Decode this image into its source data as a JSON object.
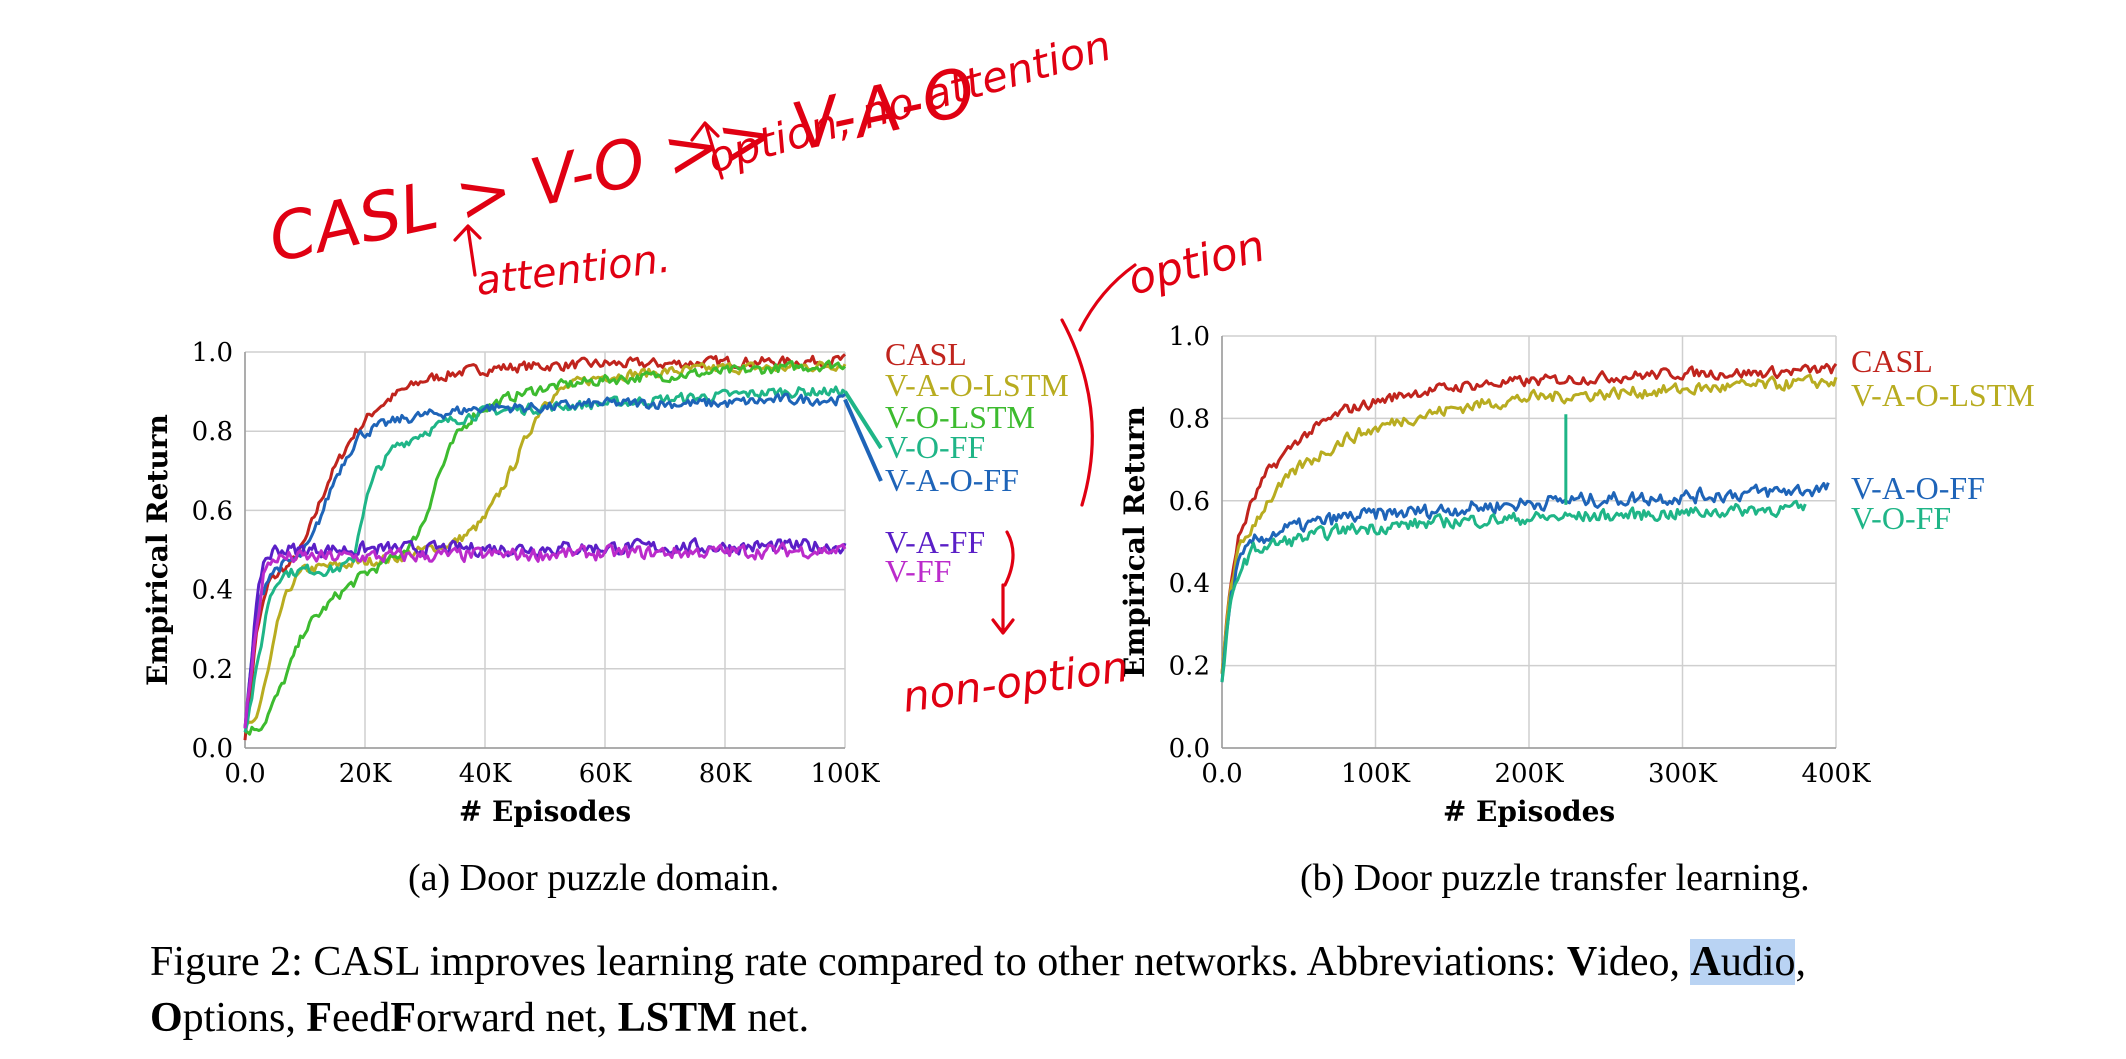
{
  "chart_data": [
    {
      "type": "line",
      "subcaption": "(a) Door puzzle domain.",
      "xlabel": "# Episodes",
      "ylabel": "Empirical Return",
      "xlim": [
        0,
        100000
      ],
      "ylim": [
        0,
        1.0
      ],
      "xticks": [
        "0.0",
        "20K",
        "40K",
        "60K",
        "80K",
        "100K"
      ],
      "xtick_values": [
        0,
        20000,
        40000,
        60000,
        80000,
        100000
      ],
      "yticks": [
        "0.0",
        "0.2",
        "0.4",
        "0.6",
        "0.8",
        "1.0"
      ],
      "ytick_values": [
        0,
        0.2,
        0.4,
        0.6,
        0.8,
        1.0
      ],
      "grid": true,
      "legend_placement": "right",
      "series": [
        {
          "name": "CASL",
          "color": "#c0241d",
          "noise": 0.012,
          "x": [
            0,
            2000,
            4000,
            8000,
            10000,
            12000,
            14000,
            18000,
            22000,
            26000,
            30000,
            36000,
            42000,
            50000,
            60000,
            70000,
            80000,
            90000,
            100000
          ],
          "y": [
            0.02,
            0.3,
            0.42,
            0.47,
            0.52,
            0.6,
            0.68,
            0.79,
            0.86,
            0.9,
            0.93,
            0.95,
            0.96,
            0.965,
            0.97,
            0.97,
            0.975,
            0.975,
            0.98
          ]
        },
        {
          "name": "V-A-O-LSTM",
          "color": "#b8ac20",
          "noise": 0.012,
          "x": [
            0,
            2000,
            4000,
            6000,
            8000,
            10000,
            15000,
            20000,
            25000,
            30000,
            35000,
            38000,
            40000,
            42000,
            45000,
            48000,
            50000,
            55000,
            60000,
            70000,
            80000,
            90000,
            100000
          ],
          "y": [
            0.05,
            0.08,
            0.2,
            0.35,
            0.42,
            0.45,
            0.46,
            0.47,
            0.48,
            0.5,
            0.52,
            0.55,
            0.58,
            0.63,
            0.72,
            0.82,
            0.88,
            0.92,
            0.94,
            0.95,
            0.96,
            0.96,
            0.97
          ]
        },
        {
          "name": "V-O-LSTM",
          "color": "#3dbb2f",
          "noise": 0.012,
          "x": [
            0,
            3000,
            6000,
            10000,
            15000,
            20000,
            25000,
            28000,
            30000,
            32000,
            35000,
            38000,
            40000,
            45000,
            50000,
            60000,
            70000,
            80000,
            90000,
            100000
          ],
          "y": [
            0.04,
            0.06,
            0.15,
            0.3,
            0.38,
            0.44,
            0.48,
            0.52,
            0.58,
            0.68,
            0.78,
            0.84,
            0.86,
            0.89,
            0.91,
            0.93,
            0.94,
            0.95,
            0.96,
            0.97
          ]
        },
        {
          "name": "V-O-FF",
          "color": "#1fb587",
          "noise": 0.012,
          "x": [
            0,
            2000,
            4000,
            6000,
            10000,
            15000,
            18000,
            19000,
            20000,
            22000,
            25000,
            30000,
            35000,
            40000,
            50000,
            60000,
            70000,
            80000,
            90000,
            100000
          ],
          "y": [
            0.04,
            0.2,
            0.38,
            0.44,
            0.45,
            0.45,
            0.47,
            0.55,
            0.62,
            0.7,
            0.76,
            0.8,
            0.83,
            0.85,
            0.86,
            0.87,
            0.88,
            0.89,
            0.9,
            0.9
          ]
        },
        {
          "name": "V-A-O-FF",
          "color": "#1e64b8",
          "noise": 0.012,
          "x": [
            0,
            2000,
            4000,
            6000,
            9000,
            11000,
            13000,
            15000,
            17000,
            19000,
            22000,
            26000,
            30000,
            35000,
            40000,
            50000,
            60000,
            70000,
            80000,
            90000,
            100000
          ],
          "y": [
            0.05,
            0.35,
            0.44,
            0.46,
            0.48,
            0.52,
            0.6,
            0.68,
            0.74,
            0.79,
            0.81,
            0.83,
            0.84,
            0.85,
            0.86,
            0.86,
            0.87,
            0.87,
            0.87,
            0.88,
            0.88
          ]
        },
        {
          "name": "V-A-FF",
          "color": "#5a1fc7",
          "noise": 0.016,
          "x": [
            0,
            1500,
            3000,
            5000,
            100000
          ],
          "y": [
            0.05,
            0.3,
            0.47,
            0.5,
            0.51
          ]
        },
        {
          "name": "V-FF",
          "color": "#bb2bcb",
          "noise": 0.016,
          "x": [
            0,
            1500,
            3000,
            5000,
            100000
          ],
          "y": [
            0.05,
            0.25,
            0.44,
            0.48,
            0.5
          ]
        }
      ]
    },
    {
      "type": "line",
      "subcaption": "(b) Door puzzle transfer learning.",
      "xlabel": "# Episodes",
      "ylabel": "Empirical Return",
      "xlim": [
        0,
        400000
      ],
      "ylim": [
        0,
        1.0
      ],
      "xticks": [
        "0.0",
        "100K",
        "200K",
        "300K",
        "400K"
      ],
      "xtick_values": [
        0,
        100000,
        200000,
        300000,
        400000
      ],
      "yticks": [
        "0.0",
        "0.2",
        "0.4",
        "0.6",
        "0.8",
        "1.0"
      ],
      "ytick_values": [
        0,
        0.2,
        0.4,
        0.6,
        0.8,
        1.0
      ],
      "grid": true,
      "legend_placement": "right",
      "series": [
        {
          "name": "CASL",
          "color": "#c0241d",
          "noise": 0.012,
          "x": [
            0,
            5000,
            10000,
            20000,
            30000,
            50000,
            80000,
            120000,
            160000,
            200000,
            250000,
            300000,
            350000,
            400000
          ],
          "y": [
            0.18,
            0.38,
            0.5,
            0.6,
            0.67,
            0.75,
            0.82,
            0.86,
            0.88,
            0.89,
            0.9,
            0.91,
            0.91,
            0.92
          ]
        },
        {
          "name": "V-A-O-LSTM",
          "color": "#b8ac20",
          "noise": 0.014,
          "x": [
            0,
            5000,
            10000,
            20000,
            30000,
            50000,
            80000,
            120000,
            160000,
            200000,
            250000,
            300000,
            350000,
            400000
          ],
          "y": [
            0.18,
            0.38,
            0.47,
            0.54,
            0.6,
            0.68,
            0.75,
            0.8,
            0.83,
            0.85,
            0.86,
            0.87,
            0.88,
            0.89
          ]
        },
        {
          "name": "V-A-O-FF",
          "color": "#1e64b8",
          "noise": 0.016,
          "x": [
            0,
            5000,
            10000,
            20000,
            40000,
            80000,
            150000,
            220000,
            300000,
            350000,
            395000
          ],
          "y": [
            0.16,
            0.35,
            0.44,
            0.5,
            0.53,
            0.56,
            0.58,
            0.6,
            0.61,
            0.62,
            0.63
          ]
        },
        {
          "name": "V-O-FF",
          "color": "#1fb587",
          "noise": 0.014,
          "x": [
            0,
            5000,
            10000,
            20000,
            40000,
            80000,
            150000,
            220000,
            300000,
            350000,
            380000
          ],
          "y": [
            0.16,
            0.33,
            0.42,
            0.48,
            0.5,
            0.53,
            0.55,
            0.56,
            0.57,
            0.58,
            0.58
          ]
        }
      ]
    }
  ],
  "annotations": {
    "top_line_1": "CASL > V-O >> V-A-O",
    "top_note_option": "option, no attention",
    "top_note_attention": "attention.",
    "option_note": "option",
    "non_option_note": "non-option"
  },
  "caption": {
    "prefix": "Figure 2: CASL improves learning rate compared to other networks. Abbreviations: ",
    "items": [
      {
        "bold": "V",
        "rest": "ideo, "
      },
      {
        "bold": "A",
        "rest": "udio",
        "highlight": true
      },
      {
        "bold": "",
        "rest": ",",
        "linebreak": true
      },
      {
        "bold": "O",
        "rest": "ptions, "
      },
      {
        "bold": "F",
        "rest": "eed"
      },
      {
        "bold": "F",
        "rest": "orward net, "
      },
      {
        "bold": "LSTM",
        "rest": " net."
      }
    ]
  }
}
